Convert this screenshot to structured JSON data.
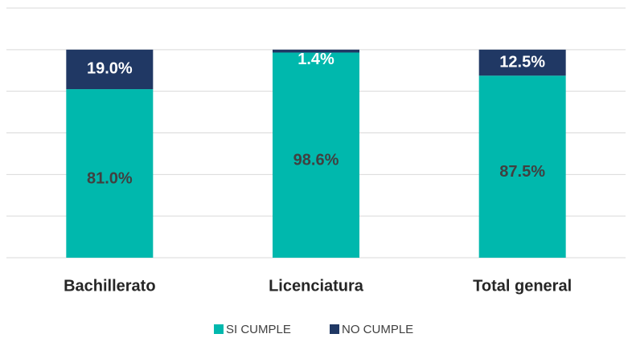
{
  "chart_data": {
    "type": "stacked_bar",
    "categories": [
      "Bachillerato",
      "Licenciatura",
      "Total general"
    ],
    "series": [
      {
        "name": "SI CUMPLE",
        "color": "#00b8ad",
        "values": [
          81.0,
          98.6,
          87.5
        ],
        "value_labels": [
          "81.0%",
          "98.6%",
          "87.5%"
        ]
      },
      {
        "name": "NO CUMPLE",
        "color": "#203864",
        "values": [
          19.0,
          1.4,
          12.5
        ],
        "value_labels": [
          "19.0%",
          "1.4%",
          "12.5%"
        ]
      }
    ],
    "ylim": [
      0,
      120
    ],
    "yticks": [
      0,
      20,
      40,
      60,
      80,
      100,
      120
    ],
    "grid": true,
    "legend": "bottom"
  }
}
